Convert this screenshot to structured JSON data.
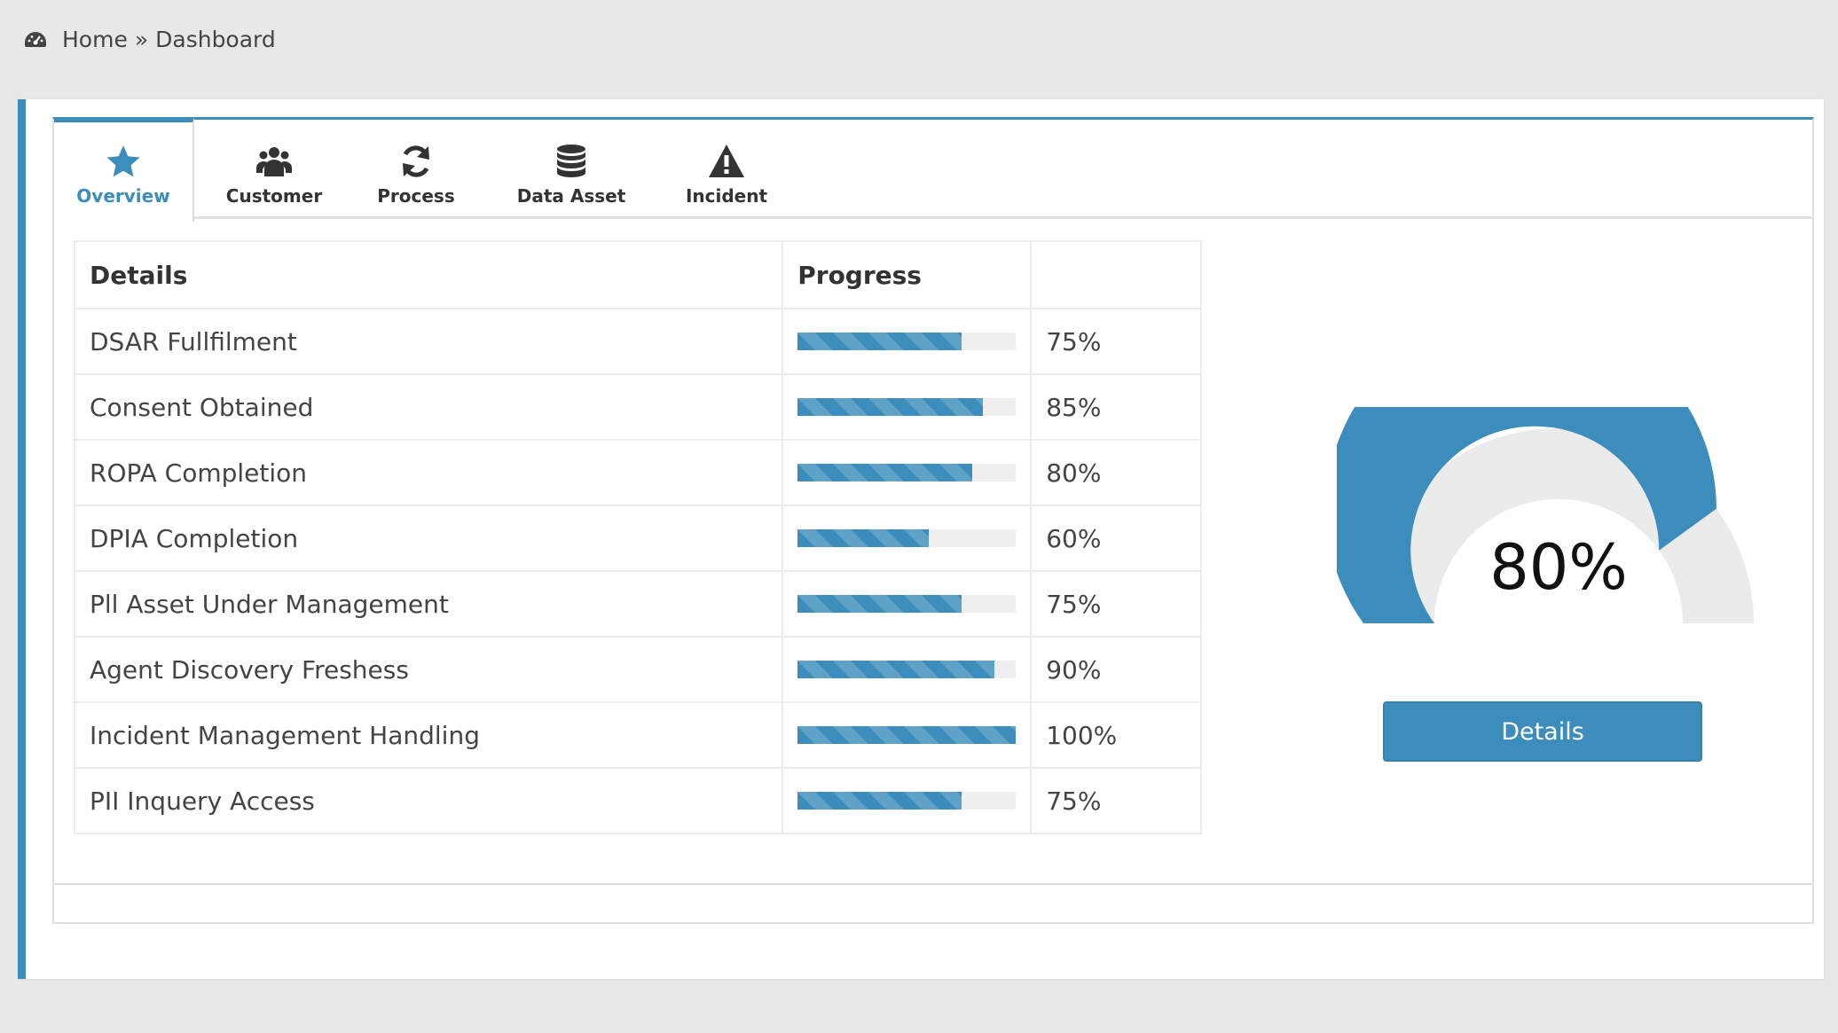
{
  "breadcrumb": {
    "icon": "dashboard-icon",
    "home": "Home",
    "separator": "»",
    "current": "Dashboard"
  },
  "tabs": [
    {
      "label": "Overview",
      "icon": "star-icon",
      "active": true
    },
    {
      "label": "Customer",
      "icon": "users-icon",
      "active": false
    },
    {
      "label": "Process",
      "icon": "refresh-icon",
      "active": false
    },
    {
      "label": "Data Asset",
      "icon": "database-icon",
      "active": false
    },
    {
      "label": "Incident",
      "icon": "warning-icon",
      "active": false
    }
  ],
  "table": {
    "headers": {
      "details": "Details",
      "progress": "Progress",
      "value": ""
    },
    "rows": [
      {
        "label": "DSAR Fullfilment",
        "value": 75,
        "text": "75%"
      },
      {
        "label": "Consent Obtained",
        "value": 85,
        "text": "85%"
      },
      {
        "label": "ROPA Completion",
        "value": 80,
        "text": "80%"
      },
      {
        "label": "DPIA Completion",
        "value": 60,
        "text": "60%"
      },
      {
        "label": "Pll Asset Under Management",
        "value": 75,
        "text": "75%"
      },
      {
        "label": "Agent Discovery Freshess",
        "value": 90,
        "text": "90%"
      },
      {
        "label": "Incident Management Handling",
        "value": 100,
        "text": "100%"
      },
      {
        "label": "PII Inquery Access",
        "value": 75,
        "text": "75%"
      }
    ]
  },
  "gauge": {
    "value": 80,
    "text": "80%",
    "fill_color": "#3c8dbc",
    "track_color": "#ebebeb"
  },
  "details_button": {
    "label": "Details"
  },
  "colors": {
    "accent": "#3c8dbc",
    "background": "#e8e8e8"
  }
}
